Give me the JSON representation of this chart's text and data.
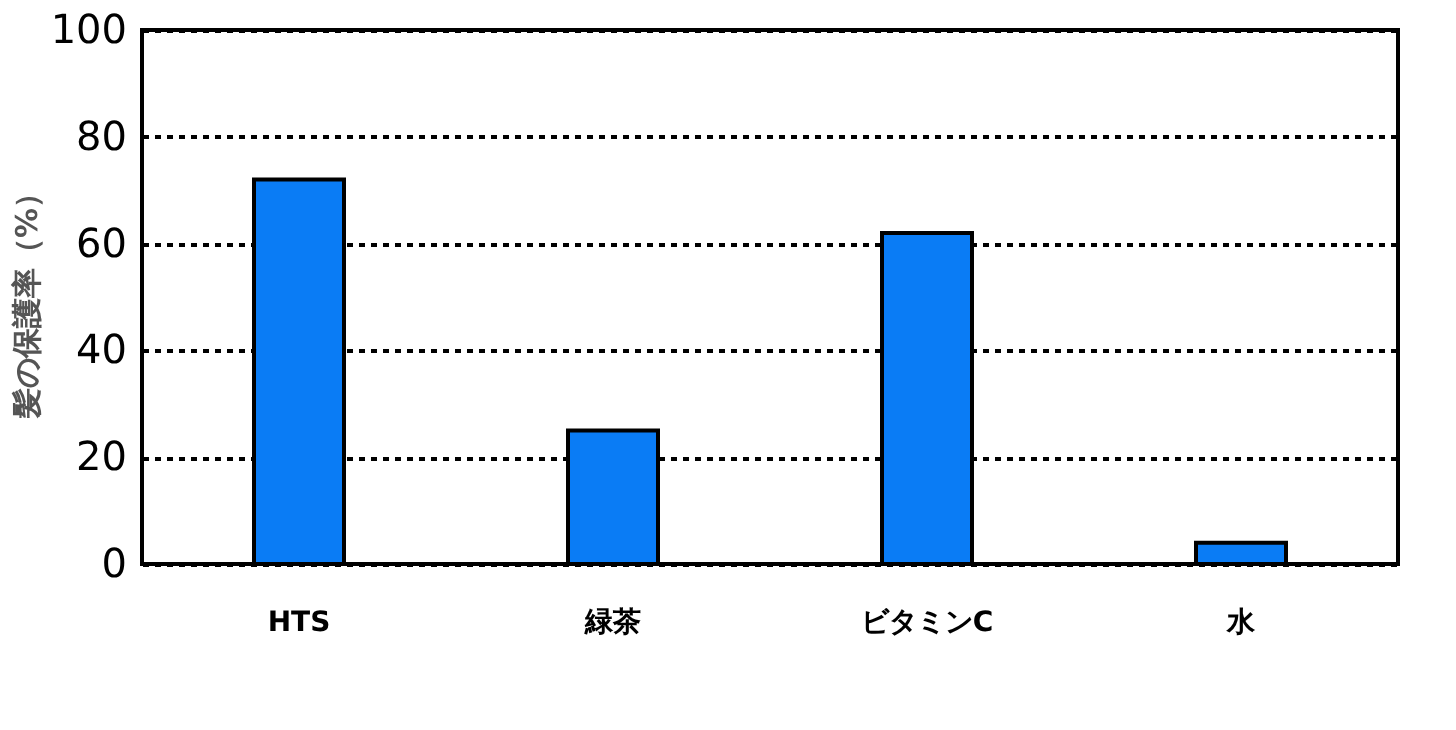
{
  "chart_data": {
    "type": "bar",
    "ylabel": "髪の保護率（%）",
    "categories": [
      "HTS",
      "緑茶",
      "ビタミンC",
      "水"
    ],
    "series": [
      {
        "color": "#0a7cf5",
        "values": [
          72,
          25,
          62,
          4
        ]
      }
    ],
    "ylim": [
      0,
      100
    ],
    "yticks": [
      0,
      20,
      40,
      60,
      80,
      100
    ],
    "grid": "y",
    "legend": false
  }
}
